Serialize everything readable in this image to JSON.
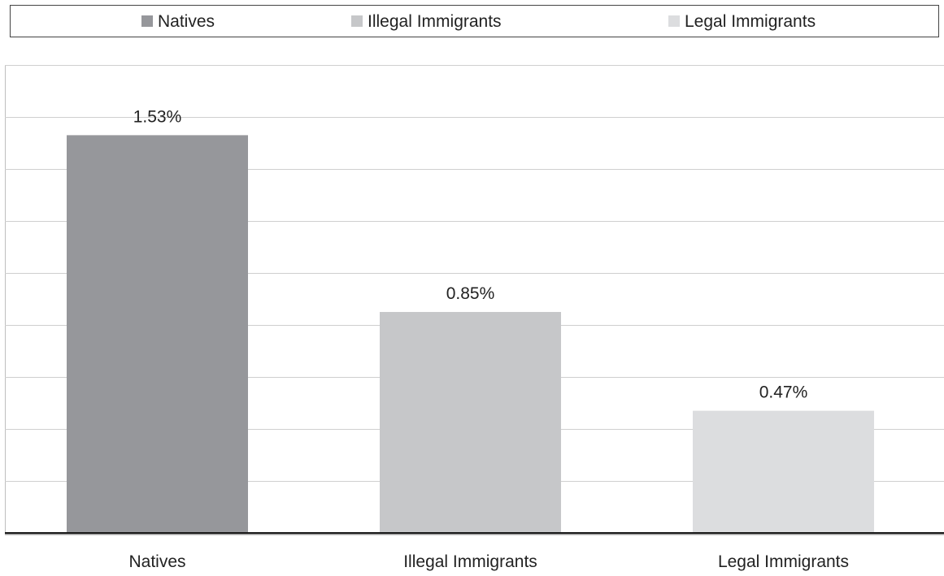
{
  "legend": {
    "items": [
      {
        "label": "Natives",
        "color": "#96979b"
      },
      {
        "label": "Illegal Immigrants",
        "color": "#c6c7c9"
      },
      {
        "label": "Legal Immigrants",
        "color": "#dcdddf"
      }
    ]
  },
  "chart_data": {
    "type": "bar",
    "categories": [
      "Natives",
      "Illegal Immigrants",
      "Legal Immigrants"
    ],
    "values": [
      1.53,
      0.85,
      0.47
    ],
    "value_labels": [
      "1.53%",
      "0.85%",
      "0.47%"
    ],
    "colors": [
      "#96979b",
      "#c6c7c9",
      "#dcdddf"
    ],
    "title": "",
    "xlabel": "",
    "ylabel": "",
    "ylim": [
      0,
      1.8
    ],
    "y_gridline_step": 0.2,
    "y_tick_labels_shown": false,
    "grid": true,
    "legend_position": "top"
  }
}
